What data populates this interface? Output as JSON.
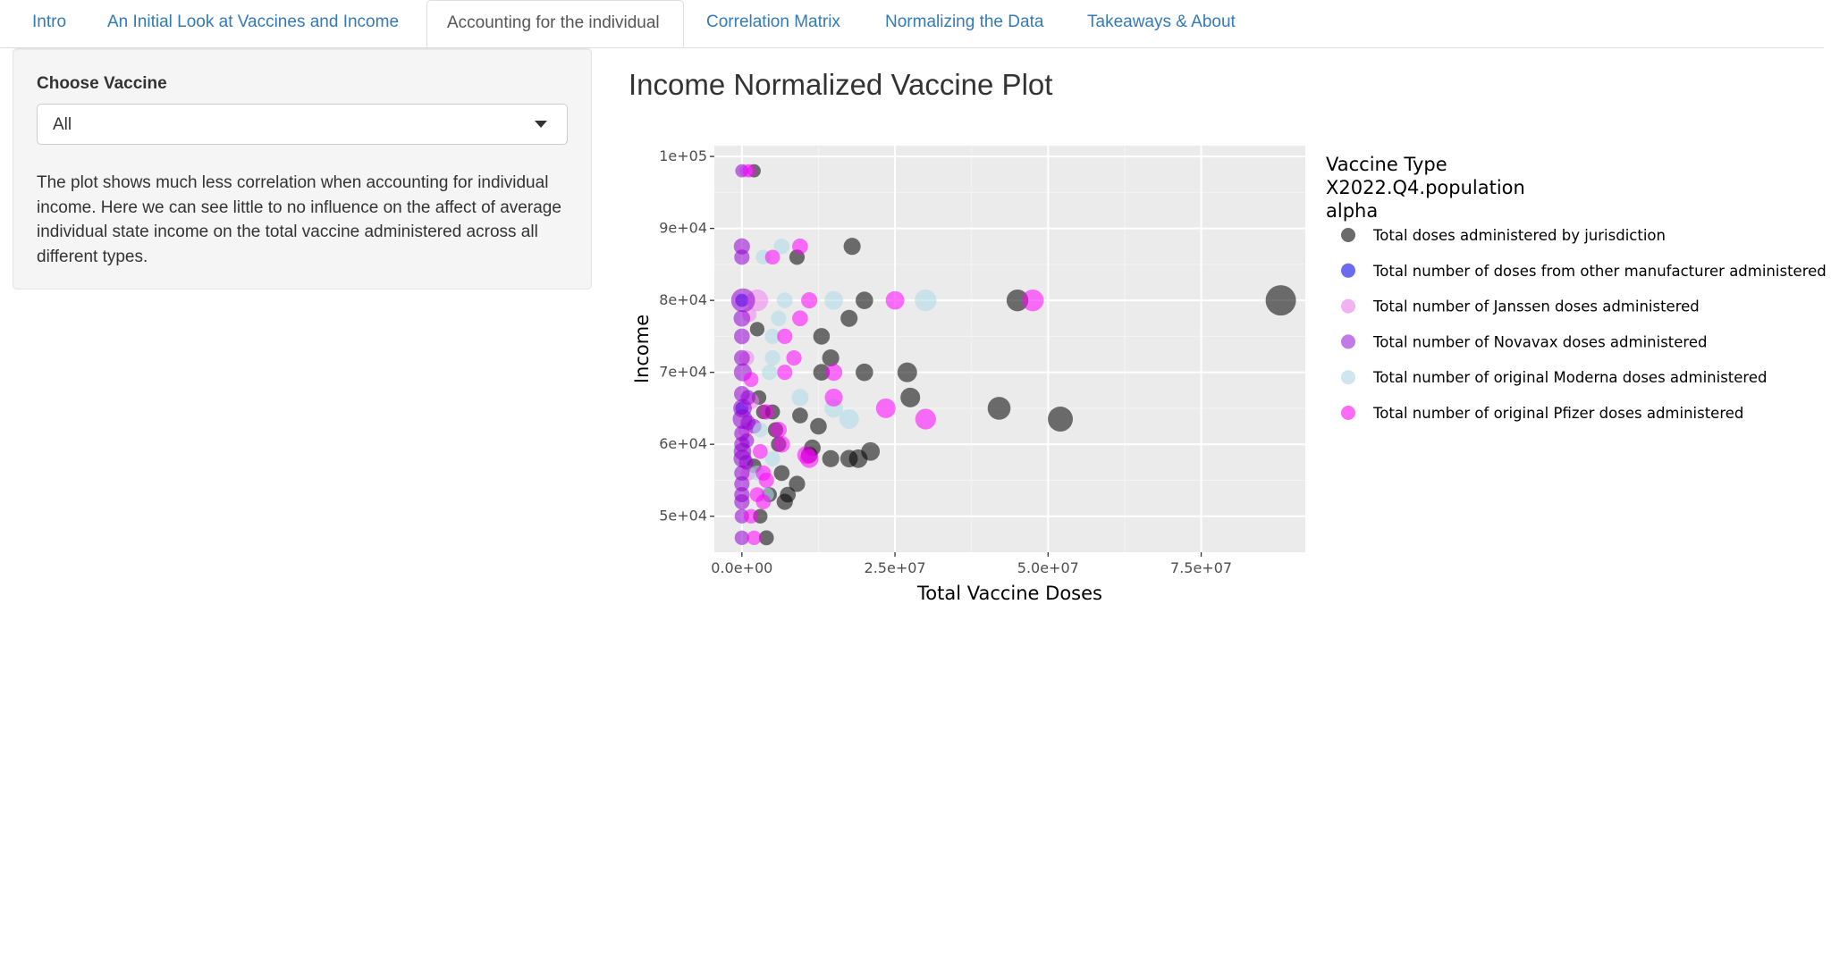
{
  "tabs": [
    {
      "label": "Intro",
      "active": false
    },
    {
      "label": "An Initial Look at Vaccines and Income",
      "active": false
    },
    {
      "label": "Accounting for the individual",
      "active": true
    },
    {
      "label": "Correlation Matrix",
      "active": false
    },
    {
      "label": "Normalizing the Data",
      "active": false
    },
    {
      "label": "Takeaways & About",
      "active": false
    }
  ],
  "sidebar": {
    "select_label": "Choose Vaccine",
    "select_value": "All",
    "description": "The plot shows much less correlation when accounting for individual income. Here we can see little to no influence on the affect of average individual state income on the total vaccine administered across all different types."
  },
  "main": {
    "title": "Income Normalized Vaccine Plot"
  },
  "chart_data": {
    "type": "scatter",
    "xlabel": "Total Vaccine Doses",
    "ylabel": "Income",
    "xlim": [
      -4500000,
      92000000
    ],
    "ylim": [
      45000,
      101500
    ],
    "x_ticks": [
      0,
      25000000,
      50000000,
      75000000
    ],
    "x_tick_labels": [
      "0.0e+00",
      "2.5e+07",
      "5.0e+07",
      "7.5e+07"
    ],
    "y_ticks": [
      50000,
      60000,
      70000,
      80000,
      90000,
      100000
    ],
    "y_tick_labels": [
      "5e+04",
      "6e+04",
      "7e+04",
      "8e+04",
      "9e+04",
      "1e+05"
    ],
    "grid": true,
    "panel_background": "#ebebeb",
    "legend_position": "right",
    "legend_titles": [
      "Vaccine Type",
      "X2022.Q4.population",
      "alpha"
    ],
    "series": [
      {
        "name": "Total doses administered by jurisdiction",
        "color": "#000000",
        "legend_color": "#6b6b6b",
        "opacity": 0.55,
        "points": [
          {
            "x": 88000000,
            "y": 80000,
            "size": 1.0
          },
          {
            "x": 52000000,
            "y": 63500,
            "size": 0.75
          },
          {
            "x": 45000000,
            "y": 80000,
            "size": 0.6
          },
          {
            "x": 42000000,
            "y": 65000,
            "size": 0.65
          },
          {
            "x": 27500000,
            "y": 66500,
            "size": 0.5
          },
          {
            "x": 27000000,
            "y": 70000,
            "size": 0.5
          },
          {
            "x": 21000000,
            "y": 59000,
            "size": 0.45
          },
          {
            "x": 20000000,
            "y": 80000,
            "size": 0.4
          },
          {
            "x": 20000000,
            "y": 70000,
            "size": 0.4
          },
          {
            "x": 19000000,
            "y": 58000,
            "size": 0.45
          },
          {
            "x": 17500000,
            "y": 58000,
            "size": 0.4
          },
          {
            "x": 18000000,
            "y": 87500,
            "size": 0.38
          },
          {
            "x": 17500000,
            "y": 77500,
            "size": 0.38
          },
          {
            "x": 14500000,
            "y": 72000,
            "size": 0.38
          },
          {
            "x": 14500000,
            "y": 58000,
            "size": 0.38
          },
          {
            "x": 13000000,
            "y": 75000,
            "size": 0.36
          },
          {
            "x": 13000000,
            "y": 70000,
            "size": 0.36
          },
          {
            "x": 12500000,
            "y": 62500,
            "size": 0.36
          },
          {
            "x": 11500000,
            "y": 59500,
            "size": 0.36
          },
          {
            "x": 11000000,
            "y": 58500,
            "size": 0.36
          },
          {
            "x": 9000000,
            "y": 86000,
            "size": 0.3
          },
          {
            "x": 9500000,
            "y": 64000,
            "size": 0.32
          },
          {
            "x": 9000000,
            "y": 54500,
            "size": 0.34
          },
          {
            "x": 7500000,
            "y": 53000,
            "size": 0.32
          },
          {
            "x": 7000000,
            "y": 52000,
            "size": 0.34
          },
          {
            "x": 6500000,
            "y": 56000,
            "size": 0.32
          },
          {
            "x": 6000000,
            "y": 60000,
            "size": 0.3
          },
          {
            "x": 5500000,
            "y": 62000,
            "size": 0.3
          },
          {
            "x": 5000000,
            "y": 64500,
            "size": 0.28
          },
          {
            "x": 4500000,
            "y": 53000,
            "size": 0.28
          },
          {
            "x": 4000000,
            "y": 47000,
            "size": 0.28
          },
          {
            "x": 3500000,
            "y": 64500,
            "size": 0.26
          },
          {
            "x": 3000000,
            "y": 50000,
            "size": 0.26
          },
          {
            "x": 2800000,
            "y": 66500,
            "size": 0.26
          },
          {
            "x": 2500000,
            "y": 76000,
            "size": 0.26
          },
          {
            "x": 2000000,
            "y": 57000,
            "size": 0.26
          },
          {
            "x": 2000000,
            "y": 98000,
            "size": 0.2
          }
        ]
      },
      {
        "name": "Total number of doses from other manufacturer administered",
        "color": "#0000ff",
        "legend_color": "#6b6bf0",
        "opacity": 0.55,
        "points": [
          {
            "x": 0,
            "y": 80000,
            "size": 0.2
          },
          {
            "x": 0,
            "y": 65000,
            "size": 0.2
          }
        ]
      },
      {
        "name": "Total number of Janssen doses administered",
        "color": "#ee82ee",
        "legend_color": "#f2b1f2",
        "opacity": 0.55,
        "points": [
          {
            "x": 2500000,
            "y": 80000,
            "size": 0.6
          },
          {
            "x": 1500000,
            "y": 66000,
            "size": 0.34
          },
          {
            "x": 1000000,
            "y": 56000,
            "size": 0.3
          },
          {
            "x": 800000,
            "y": 72000,
            "size": 0.28
          },
          {
            "x": 600000,
            "y": 62000,
            "size": 0.28
          },
          {
            "x": 700000,
            "y": 98000,
            "size": 0.2
          },
          {
            "x": 1200000,
            "y": 78000,
            "size": 0.26
          }
        ]
      },
      {
        "name": "Total number of Novavax doses administered",
        "color": "#9400d3",
        "legend_color": "#c27be6",
        "opacity": 0.55,
        "points": [
          {
            "x": 200000,
            "y": 80000,
            "size": 0.7
          },
          {
            "x": 100000,
            "y": 63500,
            "size": 0.5
          },
          {
            "x": 100000,
            "y": 65000,
            "size": 0.45
          },
          {
            "x": 150000,
            "y": 70000,
            "size": 0.42
          },
          {
            "x": 100000,
            "y": 58000,
            "size": 0.42
          },
          {
            "x": 100000,
            "y": 59000,
            "size": 0.4
          },
          {
            "x": 0,
            "y": 77500,
            "size": 0.36
          },
          {
            "x": 0,
            "y": 87500,
            "size": 0.34
          },
          {
            "x": 0,
            "y": 86000,
            "size": 0.3
          },
          {
            "x": 0,
            "y": 75000,
            "size": 0.32
          },
          {
            "x": 0,
            "y": 72000,
            "size": 0.32
          },
          {
            "x": 0,
            "y": 67000,
            "size": 0.32
          },
          {
            "x": 0,
            "y": 61500,
            "size": 0.3
          },
          {
            "x": 0,
            "y": 60000,
            "size": 0.3
          },
          {
            "x": 0,
            "y": 56000,
            "size": 0.3
          },
          {
            "x": 0,
            "y": 54500,
            "size": 0.3
          },
          {
            "x": 0,
            "y": 53000,
            "size": 0.3
          },
          {
            "x": 0,
            "y": 52000,
            "size": 0.3
          },
          {
            "x": 0,
            "y": 50000,
            "size": 0.26
          },
          {
            "x": 0,
            "y": 47000,
            "size": 0.26
          },
          {
            "x": 0,
            "y": 98000,
            "size": 0.2
          },
          {
            "x": 1000000,
            "y": 66500,
            "size": 0.28
          },
          {
            "x": 1000000,
            "y": 63000,
            "size": 0.28
          },
          {
            "x": 800000,
            "y": 60500,
            "size": 0.26
          },
          {
            "x": 700000,
            "y": 57500,
            "size": 0.26
          },
          {
            "x": 2000000,
            "y": 62500,
            "size": 0.26
          }
        ]
      },
      {
        "name": "Total number of original Moderna doses administered",
        "color": "#add8e6",
        "legend_color": "#cfe6ee",
        "opacity": 0.55,
        "points": [
          {
            "x": 30000000,
            "y": 80000,
            "size": 0.6
          },
          {
            "x": 17500000,
            "y": 63500,
            "size": 0.5
          },
          {
            "x": 15000000,
            "y": 65000,
            "size": 0.45
          },
          {
            "x": 15000000,
            "y": 80000,
            "size": 0.45
          },
          {
            "x": 9500000,
            "y": 66500,
            "size": 0.38
          },
          {
            "x": 7000000,
            "y": 80000,
            "size": 0.32
          },
          {
            "x": 6500000,
            "y": 87500,
            "size": 0.32
          },
          {
            "x": 6000000,
            "y": 77500,
            "size": 0.3
          },
          {
            "x": 5000000,
            "y": 72000,
            "size": 0.3
          },
          {
            "x": 5000000,
            "y": 75000,
            "size": 0.3
          },
          {
            "x": 4500000,
            "y": 70000,
            "size": 0.3
          },
          {
            "x": 5000000,
            "y": 58000,
            "size": 0.3
          },
          {
            "x": 4000000,
            "y": 53000,
            "size": 0.28
          },
          {
            "x": 3500000,
            "y": 86000,
            "size": 0.28
          },
          {
            "x": 3000000,
            "y": 62000,
            "size": 0.28
          },
          {
            "x": 2500000,
            "y": 56000,
            "size": 0.28
          }
        ]
      },
      {
        "name": "Total number of original Pfizer doses administered",
        "color": "#ff00ff",
        "legend_color": "#fb6bf6",
        "opacity": 0.55,
        "points": [
          {
            "x": 47500000,
            "y": 80000,
            "size": 0.6
          },
          {
            "x": 30000000,
            "y": 63500,
            "size": 0.55
          },
          {
            "x": 23500000,
            "y": 65000,
            "size": 0.5
          },
          {
            "x": 25000000,
            "y": 80000,
            "size": 0.45
          },
          {
            "x": 15000000,
            "y": 66500,
            "size": 0.42
          },
          {
            "x": 15000000,
            "y": 70000,
            "size": 0.38
          },
          {
            "x": 11000000,
            "y": 80000,
            "size": 0.34
          },
          {
            "x": 11000000,
            "y": 58000,
            "size": 0.45
          },
          {
            "x": 10500000,
            "y": 58500,
            "size": 0.42
          },
          {
            "x": 9500000,
            "y": 87500,
            "size": 0.32
          },
          {
            "x": 9500000,
            "y": 77500,
            "size": 0.32
          },
          {
            "x": 8500000,
            "y": 72000,
            "size": 0.3
          },
          {
            "x": 7000000,
            "y": 75000,
            "size": 0.3
          },
          {
            "x": 7000000,
            "y": 70000,
            "size": 0.3
          },
          {
            "x": 6500000,
            "y": 60000,
            "size": 0.36
          },
          {
            "x": 6000000,
            "y": 62000,
            "size": 0.34
          },
          {
            "x": 5000000,
            "y": 86000,
            "size": 0.28
          },
          {
            "x": 4000000,
            "y": 64500,
            "size": 0.3
          },
          {
            "x": 4000000,
            "y": 55000,
            "size": 0.3
          },
          {
            "x": 3500000,
            "y": 56000,
            "size": 0.3
          },
          {
            "x": 3500000,
            "y": 52000,
            "size": 0.28
          },
          {
            "x": 3000000,
            "y": 59000,
            "size": 0.28
          },
          {
            "x": 2500000,
            "y": 53000,
            "size": 0.28
          },
          {
            "x": 2000000,
            "y": 47000,
            "size": 0.26
          },
          {
            "x": 1500000,
            "y": 50000,
            "size": 0.26
          },
          {
            "x": 1500000,
            "y": 69000,
            "size": 0.28
          },
          {
            "x": 1200000,
            "y": 98000,
            "size": 0.2
          }
        ]
      }
    ]
  }
}
